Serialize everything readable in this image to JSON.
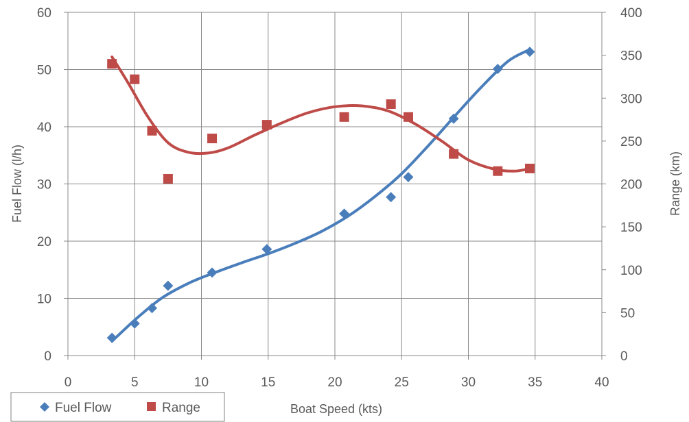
{
  "chart_data": {
    "type": "scatter",
    "xlabel": "Boat Speed (kts)",
    "ylabel_left": "Fuel Flow (l/h)",
    "ylabel_right": "Range (km)",
    "xlim": [
      0,
      40
    ],
    "ylim_left": [
      0,
      60
    ],
    "ylim_right": [
      0,
      400
    ],
    "x_ticks": [
      0,
      5,
      10,
      15,
      20,
      25,
      30,
      35,
      40
    ],
    "y_left_ticks": [
      0,
      10,
      20,
      30,
      40,
      50,
      60
    ],
    "y_right_ticks": [
      0,
      50,
      100,
      150,
      200,
      250,
      300,
      350,
      400
    ],
    "grid": true,
    "legend_position": "bottom-left",
    "series": [
      {
        "name": "Fuel Flow",
        "axis": "left",
        "marker": "diamond",
        "color": "#4a7ebb",
        "x": [
          3.3,
          5.0,
          6.3,
          7.5,
          10.8,
          14.9,
          20.7,
          24.2,
          25.5,
          28.9,
          32.2,
          34.6
        ],
        "y": [
          3.1,
          5.6,
          8.3,
          12.2,
          14.5,
          18.6,
          24.8,
          27.7,
          31.2,
          41.4,
          50.1,
          53.1
        ],
        "trendline": {
          "x": [
            3.3,
            5,
            7,
            9,
            11,
            13,
            15,
            17,
            19,
            21,
            23,
            25,
            27,
            29,
            31,
            33,
            34.6
          ],
          "y": [
            2.5,
            6.2,
            10.0,
            12.6,
            14.5,
            16.2,
            17.8,
            19.6,
            21.7,
            24.4,
            27.8,
            31.8,
            36.7,
            41.9,
            47.0,
            51.5,
            53.5
          ]
        }
      },
      {
        "name": "Range",
        "axis": "right",
        "marker": "square",
        "color": "#be4b48",
        "x": [
          3.3,
          5.0,
          6.3,
          7.5,
          10.8,
          14.9,
          20.7,
          24.2,
          25.5,
          28.9,
          32.2,
          34.6
        ],
        "y": [
          340,
          322,
          262,
          206,
          253,
          269,
          278,
          293,
          278,
          235,
          215,
          218
        ],
        "trendline": {
          "x": [
            3.3,
            4.5,
            6,
            7.5,
            9,
            10.5,
            12,
            14,
            16,
            18,
            20,
            22,
            24,
            26,
            28,
            30,
            32,
            33.5,
            34.6
          ],
          "y": [
            348,
            318,
            278,
            248,
            237,
            236,
            242,
            257,
            271,
            283,
            290,
            291,
            285,
            270,
            250,
            228,
            217,
            215,
            218
          ]
        }
      }
    ]
  }
}
